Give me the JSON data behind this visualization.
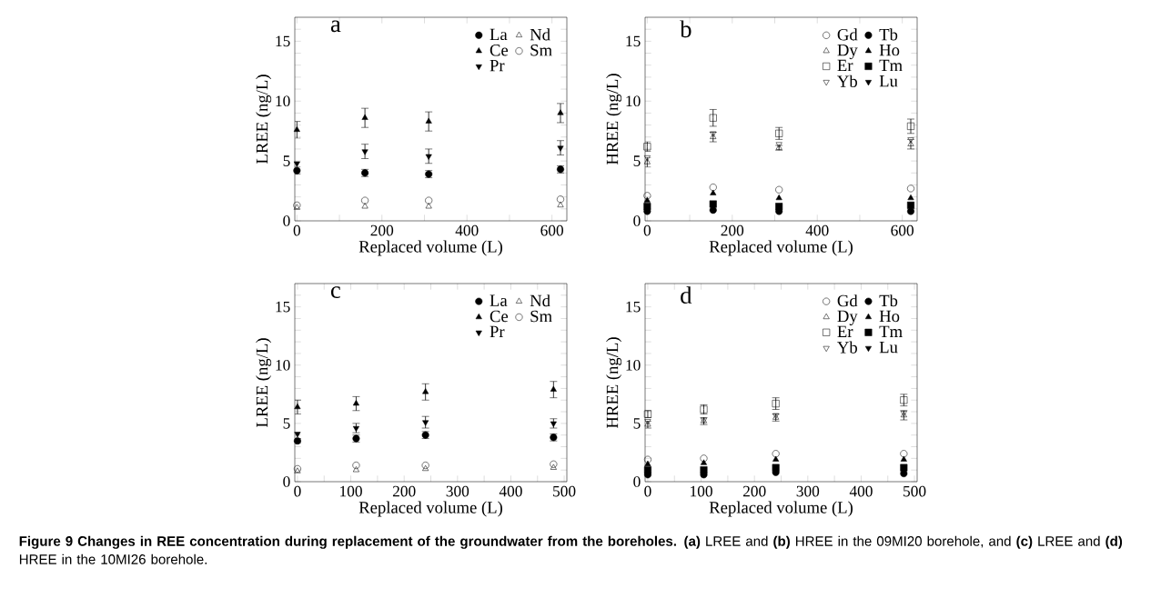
{
  "chart_data": [
    {
      "type": "scatter",
      "title": "a",
      "xlabel": "Replaced volume (L)",
      "ylabel": "LREE (ng/L)",
      "legend": "top right",
      "xlim": [
        -5,
        635
      ],
      "ylim": [
        0,
        17
      ],
      "xticks": [
        0,
        {
          "value": 100,
          "label": null
        },
        200,
        {
          "value": 300,
          "label": null
        },
        400,
        {
          "value": 500,
          "label": null
        },
        600
      ],
      "yticks": [
        0,
        {
          "value": 1,
          "label": null
        },
        {
          "value": 2,
          "label": null
        },
        {
          "value": 3,
          "label": null
        },
        {
          "value": 4,
          "label": null
        },
        5,
        {
          "value": 6,
          "label": null
        },
        {
          "value": 7,
          "label": null
        },
        {
          "value": 8,
          "label": null
        },
        {
          "value": 9,
          "label": null
        },
        10,
        {
          "value": 11,
          "label": null
        },
        {
          "value": 12,
          "label": null
        },
        {
          "value": 13,
          "label": null
        },
        {
          "value": 14,
          "label": null
        },
        15,
        {
          "value": 16,
          "label": null
        }
      ],
      "x": [
        0,
        160,
        310,
        620
      ],
      "series": [
        {
          "name": "La",
          "color": "#000000",
          "marker": "circle",
          "values": [
            4.2,
            4.0,
            3.9,
            4.3
          ],
          "errors": [
            0.3,
            0.3,
            0.3,
            0.3
          ]
        },
        {
          "name": "Ce",
          "color": "#000000",
          "marker": "triangle",
          "values": [
            7.6,
            8.6,
            8.3,
            9.0
          ],
          "errors": [
            0.7,
            0.8,
            0.8,
            0.8
          ]
        },
        {
          "name": "Pr",
          "color": "#000000",
          "marker": "triangle-down",
          "values": [
            4.8,
            5.8,
            5.4,
            6.1
          ],
          "errors": [
            null,
            0.6,
            0.6,
            0.6
          ]
        },
        {
          "name": "Nd",
          "color": "#000000",
          "marker": "triangle-open",
          "values": [
            1.1,
            1.2,
            1.2,
            1.3
          ]
        },
        {
          "name": "Sm",
          "color": "#000000",
          "marker": "circle-open",
          "values": [
            1.3,
            1.7,
            1.7,
            1.8
          ]
        }
      ]
    },
    {
      "type": "scatter",
      "title": "b",
      "xlabel": "Replaced volume (L)",
      "ylabel": "HREE (ng/L)",
      "legend": "top right",
      "xlim": [
        -5,
        635
      ],
      "ylim": [
        0,
        17
      ],
      "xticks": [
        0,
        {
          "value": 100,
          "label": null
        },
        200,
        {
          "value": 300,
          "label": null
        },
        400,
        {
          "value": 500,
          "label": null
        },
        600
      ],
      "yticks": [
        0,
        {
          "value": 1,
          "label": null
        },
        {
          "value": 2,
          "label": null
        },
        {
          "value": 3,
          "label": null
        },
        {
          "value": 4,
          "label": null
        },
        5,
        {
          "value": 6,
          "label": null
        },
        {
          "value": 7,
          "label": null
        },
        {
          "value": 8,
          "label": null
        },
        {
          "value": 9,
          "label": null
        },
        10,
        {
          "value": 11,
          "label": null
        },
        {
          "value": 12,
          "label": null
        },
        {
          "value": 13,
          "label": null
        },
        {
          "value": 14,
          "label": null
        },
        15,
        {
          "value": 16,
          "label": null
        }
      ],
      "x": [
        0,
        155,
        310,
        620
      ],
      "series": [
        {
          "name": "Gd",
          "color": "#000000",
          "marker": "circle-open",
          "values": [
            2.1,
            2.8,
            2.6,
            2.7
          ]
        },
        {
          "name": "Dy",
          "color": "#000000",
          "marker": "triangle-open",
          "values": [
            4.9,
            7.0,
            6.1,
            6.4
          ],
          "errors": [
            0.4,
            0.4,
            0.2,
            0.4
          ]
        },
        {
          "name": "Er",
          "color": "#000000",
          "marker": "square-open",
          "values": [
            6.2,
            8.6,
            7.3,
            7.9
          ],
          "errors": [
            0.4,
            0.7,
            0.5,
            0.6
          ]
        },
        {
          "name": "Yb",
          "color": "#000000",
          "marker": "triangle-down-open",
          "values": [
            5.3,
            7.3,
            6.4,
            6.8
          ]
        },
        {
          "name": "Tb",
          "color": "#000000",
          "marker": "circle",
          "values": [
            0.8,
            0.9,
            0.8,
            0.8
          ]
        },
        {
          "name": "Ho",
          "color": "#000000",
          "marker": "triangle",
          "values": [
            1.7,
            2.3,
            1.9,
            1.9
          ]
        },
        {
          "name": "Tm",
          "color": "#000000",
          "marker": "square",
          "values": [
            1.2,
            1.4,
            1.2,
            1.3
          ]
        },
        {
          "name": "Lu",
          "color": "#000000",
          "marker": "triangle-down",
          "values": [
            null,
            null,
            null,
            null
          ]
        }
      ]
    },
    {
      "type": "scatter",
      "title": "c",
      "xlabel": "Replaced volume (L)",
      "ylabel": "LREE (ng/L)",
      "legend": "top right",
      "xlim": [
        -5,
        505
      ],
      "ylim": [
        0,
        17
      ],
      "xticks": [
        0,
        {
          "value": 50,
          "label": null
        },
        100,
        {
          "value": 150,
          "label": null
        },
        200,
        {
          "value": 250,
          "label": null
        },
        300,
        {
          "value": 350,
          "label": null
        },
        400,
        {
          "value": 450,
          "label": null
        },
        500
      ],
      "yticks": [
        0,
        {
          "value": 1,
          "label": null
        },
        {
          "value": 2,
          "label": null
        },
        {
          "value": 3,
          "label": null
        },
        {
          "value": 4,
          "label": null
        },
        5,
        {
          "value": 6,
          "label": null
        },
        {
          "value": 7,
          "label": null
        },
        {
          "value": 8,
          "label": null
        },
        {
          "value": 9,
          "label": null
        },
        10,
        {
          "value": 11,
          "label": null
        },
        {
          "value": 12,
          "label": null
        },
        {
          "value": 13,
          "label": null
        },
        {
          "value": 14,
          "label": null
        },
        15,
        {
          "value": 16,
          "label": null
        }
      ],
      "x": [
        0,
        110,
        240,
        480
      ],
      "series": [
        {
          "name": "La",
          "color": "#000000",
          "marker": "circle",
          "values": [
            3.5,
            3.7,
            4.0,
            3.8
          ],
          "errors": [
            0.2,
            0.3,
            0.3,
            0.3
          ]
        },
        {
          "name": "Ce",
          "color": "#000000",
          "marker": "triangle",
          "values": [
            6.4,
            6.7,
            7.7,
            7.9
          ],
          "errors": [
            0.6,
            0.6,
            0.7,
            0.7
          ]
        },
        {
          "name": "Pr",
          "color": "#000000",
          "marker": "triangle-down",
          "values": [
            4.1,
            4.6,
            5.1,
            5.0
          ],
          "errors": [
            null,
            0.4,
            0.5,
            0.4
          ]
        },
        {
          "name": "Nd",
          "color": "#000000",
          "marker": "triangle-open",
          "values": [
            0.9,
            1.0,
            1.1,
            1.2
          ]
        },
        {
          "name": "Sm",
          "color": "#000000",
          "marker": "circle-open",
          "values": [
            1.1,
            1.4,
            1.4,
            1.5
          ]
        }
      ]
    },
    {
      "type": "scatter",
      "title": "d",
      "xlabel": "Replaced volume (L)",
      "ylabel": "HREE (ng/L)",
      "legend": "top right",
      "xlim": [
        -5,
        505
      ],
      "ylim": [
        0,
        17
      ],
      "xticks": [
        0,
        {
          "value": 50,
          "label": null
        },
        100,
        {
          "value": 150,
          "label": null
        },
        200,
        {
          "value": 250,
          "label": null
        },
        300,
        {
          "value": 350,
          "label": null
        },
        400,
        {
          "value": 450,
          "label": null
        },
        500
      ],
      "yticks": [
        0,
        {
          "value": 1,
          "label": null
        },
        {
          "value": 2,
          "label": null
        },
        {
          "value": 3,
          "label": null
        },
        {
          "value": 4,
          "label": null
        },
        5,
        {
          "value": 6,
          "label": null
        },
        {
          "value": 7,
          "label": null
        },
        {
          "value": 8,
          "label": null
        },
        {
          "value": 9,
          "label": null
        },
        10,
        {
          "value": 11,
          "label": null
        },
        {
          "value": 12,
          "label": null
        },
        {
          "value": 13,
          "label": null
        },
        {
          "value": 14,
          "label": null
        },
        15,
        {
          "value": 16,
          "label": null
        }
      ],
      "x": [
        0,
        105,
        240,
        480
      ],
      "series": [
        {
          "name": "Gd",
          "color": "#000000",
          "marker": "circle-open",
          "values": [
            1.9,
            2.0,
            2.4,
            2.4
          ]
        },
        {
          "name": "Dy",
          "color": "#000000",
          "marker": "triangle-open",
          "values": [
            4.9,
            5.2,
            5.5,
            5.7
          ],
          "errors": [
            0.3,
            0.3,
            0.3,
            0.4
          ]
        },
        {
          "name": "Er",
          "color": "#000000",
          "marker": "square-open",
          "values": [
            5.8,
            6.2,
            6.7,
            7.0
          ],
          "errors": [
            0.3,
            0.4,
            0.5,
            0.5
          ]
        },
        {
          "name": "Yb",
          "color": "#000000",
          "marker": "triangle-down-open",
          "values": [
            5.2,
            5.3,
            5.7,
            5.9
          ]
        },
        {
          "name": "Tb",
          "color": "#000000",
          "marker": "circle",
          "values": [
            0.6,
            0.6,
            0.8,
            0.7
          ]
        },
        {
          "name": "Ho",
          "color": "#000000",
          "marker": "triangle",
          "values": [
            1.5,
            1.6,
            1.9,
            1.9
          ]
        },
        {
          "name": "Tm",
          "color": "#000000",
          "marker": "square",
          "values": [
            1.0,
            1.0,
            1.2,
            1.2
          ]
        },
        {
          "name": "Lu",
          "color": "#000000",
          "marker": "triangle-down",
          "values": [
            null,
            null,
            null,
            null
          ]
        }
      ],
      "annotations": [
        "**Figure 9 Changes in REE concentration during replacement of the groundwater from the boreholes.** **(a)** LREE and **(b)** HREE in the 09MI20 borehole, and **(c)** LREE and **(d)** HREE in the 10MI26 borehole."
      ]
    }
  ]
}
